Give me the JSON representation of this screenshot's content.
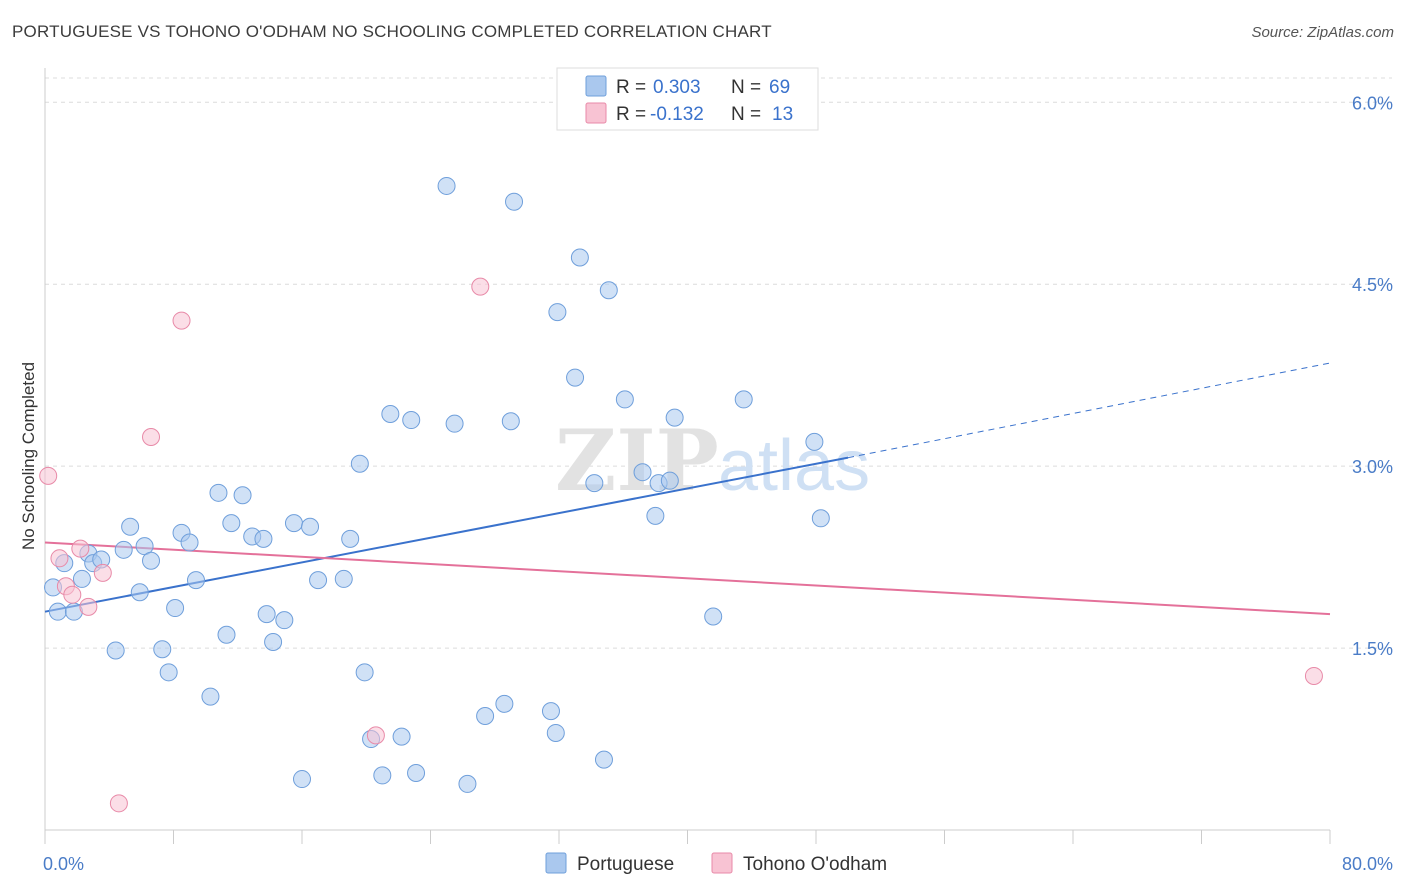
{
  "title": "PORTUGUESE VS TOHONO O'ODHAM NO SCHOOLING COMPLETED CORRELATION CHART",
  "source": "Source: ZipAtlas.com",
  "watermark": "ZIPatlas",
  "legend": {
    "rows": [
      {
        "r_label": "R =",
        "r_value": "0.303",
        "n_label": "N =",
        "n_value": "69",
        "color": "#aac8ee",
        "border": "#6f9fdb"
      },
      {
        "r_label": "R =",
        "r_value": "-0.132",
        "n_label": "N =",
        "n_value": "13",
        "color": "#f8c3d3",
        "border": "#e88aa8"
      }
    ]
  },
  "chart_data": {
    "type": "scatter",
    "ylabel": "No Schooling Completed",
    "x_tick_labels": [
      "0.0%",
      "80.0%"
    ],
    "y_tick_labels": [
      "1.5%",
      "3.0%",
      "4.5%",
      "6.0%"
    ],
    "xlim": [
      0,
      80
    ],
    "ylim": [
      0,
      6.2
    ],
    "y_ticks": [
      1.5,
      3.0,
      4.5,
      6.0
    ],
    "grid": true,
    "legend_position": "top-center",
    "series": [
      {
        "name": "Portuguese",
        "color": "#aac8ee",
        "stroke": "#6f9fdb",
        "points": [
          [
            0.5,
            2.0
          ],
          [
            0.8,
            1.8
          ],
          [
            1.2,
            2.2
          ],
          [
            1.8,
            1.8
          ],
          [
            2.3,
            2.07
          ],
          [
            2.7,
            2.28
          ],
          [
            3.0,
            2.2
          ],
          [
            3.5,
            2.23
          ],
          [
            4.4,
            1.48
          ],
          [
            4.9,
            2.31
          ],
          [
            5.3,
            2.5
          ],
          [
            5.9,
            1.96
          ],
          [
            6.2,
            2.34
          ],
          [
            6.6,
            2.22
          ],
          [
            7.3,
            1.49
          ],
          [
            7.7,
            1.3
          ],
          [
            8.1,
            1.83
          ],
          [
            8.5,
            2.45
          ],
          [
            9.0,
            2.37
          ],
          [
            9.4,
            2.06
          ],
          [
            10.3,
            1.1
          ],
          [
            10.8,
            2.78
          ],
          [
            11.3,
            1.61
          ],
          [
            11.6,
            2.53
          ],
          [
            12.3,
            2.76
          ],
          [
            12.9,
            2.42
          ],
          [
            13.6,
            2.4
          ],
          [
            13.8,
            1.78
          ],
          [
            14.2,
            1.55
          ],
          [
            14.9,
            1.73
          ],
          [
            15.5,
            2.53
          ],
          [
            16.5,
            2.5
          ],
          [
            16.0,
            0.42
          ],
          [
            17.0,
            2.06
          ],
          [
            18.6,
            2.07
          ],
          [
            19.0,
            2.4
          ],
          [
            19.6,
            3.02
          ],
          [
            19.9,
            1.3
          ],
          [
            20.3,
            0.75
          ],
          [
            21.0,
            0.45
          ],
          [
            21.5,
            3.43
          ],
          [
            22.2,
            0.77
          ],
          [
            22.8,
            3.38
          ],
          [
            23.1,
            0.47
          ],
          [
            25.5,
            3.35
          ],
          [
            26.3,
            0.38
          ],
          [
            27.4,
            0.94
          ],
          [
            28.6,
            1.04
          ],
          [
            29.0,
            3.37
          ],
          [
            29.2,
            5.18
          ],
          [
            31.5,
            0.98
          ],
          [
            31.8,
            0.8
          ],
          [
            31.9,
            4.27
          ],
          [
            33.0,
            3.73
          ],
          [
            33.3,
            4.72
          ],
          [
            34.2,
            2.86
          ],
          [
            34.8,
            0.58
          ],
          [
            35.1,
            4.45
          ],
          [
            36.1,
            3.55
          ],
          [
            37.2,
            2.95
          ],
          [
            38.0,
            2.59
          ],
          [
            38.2,
            2.86
          ],
          [
            38.9,
            2.88
          ],
          [
            39.2,
            3.4
          ],
          [
            41.6,
            1.76
          ],
          [
            43.5,
            3.55
          ],
          [
            47.9,
            3.2
          ],
          [
            48.3,
            2.57
          ],
          [
            25.0,
            5.31
          ]
        ]
      },
      {
        "name": "Tohono O'odham",
        "color": "#f8c3d3",
        "stroke": "#e88aa8",
        "points": [
          [
            0.2,
            2.92
          ],
          [
            0.9,
            2.24
          ],
          [
            1.3,
            2.01
          ],
          [
            1.7,
            1.94
          ],
          [
            2.2,
            2.32
          ],
          [
            2.7,
            1.84
          ],
          [
            3.6,
            2.12
          ],
          [
            4.6,
            0.22
          ],
          [
            6.6,
            3.24
          ],
          [
            8.5,
            4.2
          ],
          [
            20.6,
            0.78
          ],
          [
            27.1,
            4.48
          ],
          [
            79.0,
            1.27
          ]
        ]
      }
    ],
    "trend_lines": [
      {
        "series": "Portuguese",
        "color": "#3a72cc",
        "x0": 0,
        "y0": 1.8,
        "x1": 50,
        "y1": 3.07,
        "dashed_to_x": 80,
        "dashed_to_y": 3.85
      },
      {
        "series": "Tohono O'odham",
        "color": "#e4719a",
        "x0": 0,
        "y0": 2.37,
        "x1": 80,
        "y1": 1.78
      }
    ]
  }
}
